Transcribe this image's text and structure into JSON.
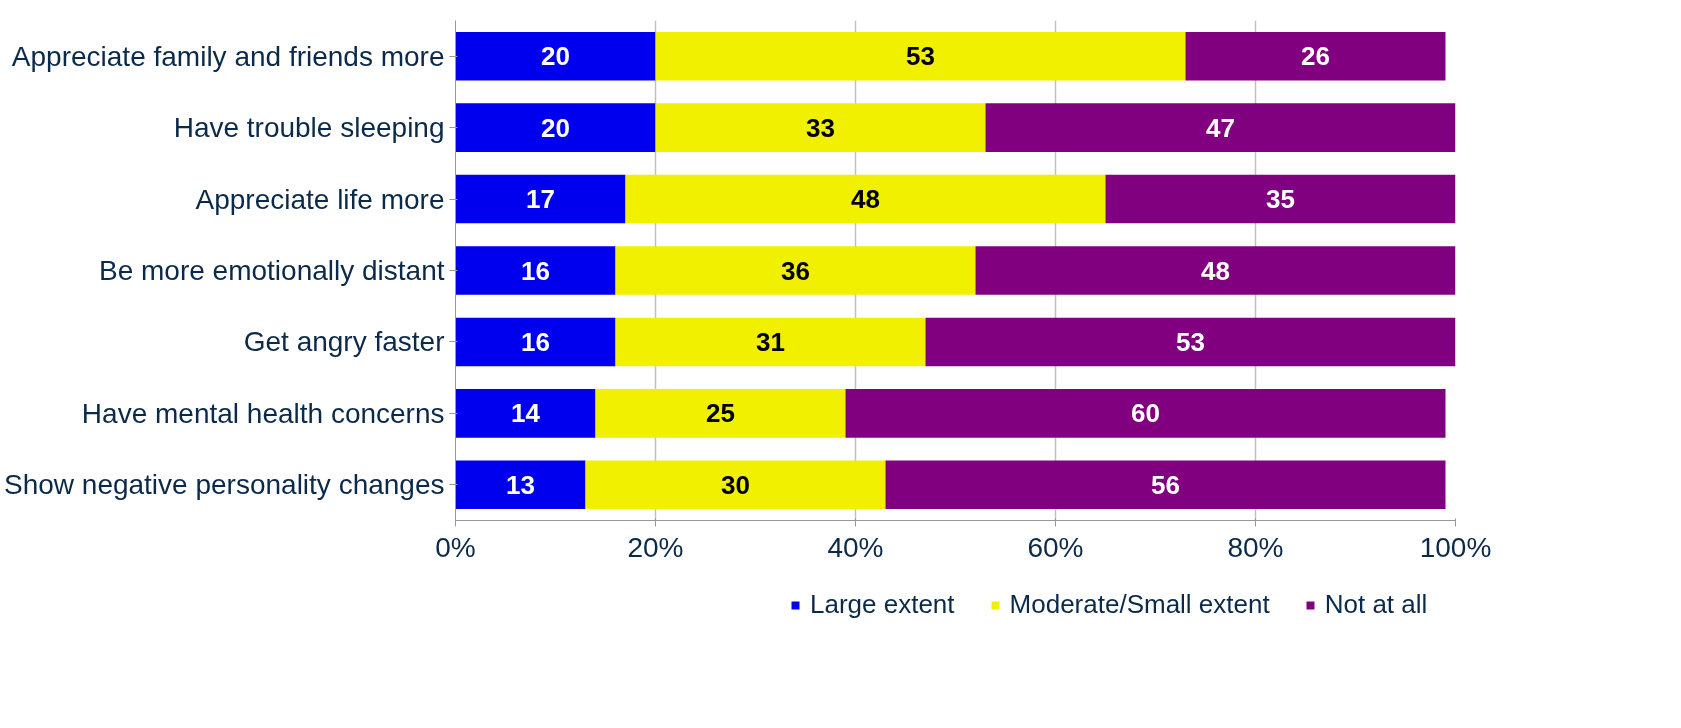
{
  "chart_data": {
    "type": "bar",
    "orientation": "horizontal",
    "stacked": true,
    "data_labels": true,
    "grid": "x",
    "legend": "bottom",
    "categories": [
      "Appreciate family and friends more",
      "Have trouble sleeping",
      "Appreciate life more",
      "Be more emotionally distant",
      "Get angry faster",
      "Have mental health concerns",
      "Show negative personality changes"
    ],
    "series": [
      {
        "name": "Large extent",
        "color": "#0000ee",
        "values": [
          20,
          20,
          17,
          16,
          16,
          14,
          13
        ]
      },
      {
        "name": "Moderate/Small extent",
        "color": "#f0f000",
        "values": [
          53,
          33,
          48,
          36,
          31,
          25,
          30
        ]
      },
      {
        "name": "Not at all",
        "color": "#800080",
        "values": [
          26,
          47,
          35,
          48,
          53,
          60,
          56
        ]
      }
    ],
    "xlim": [
      0,
      100
    ],
    "xticks": [
      {
        "value": 0,
        "label": "0%"
      },
      {
        "value": 20,
        "label": "20%"
      },
      {
        "value": 40,
        "label": "40%"
      },
      {
        "value": 60,
        "label": "60%"
      },
      {
        "value": 80,
        "label": "80%"
      },
      {
        "value": 100,
        "label": "100%"
      }
    ]
  }
}
